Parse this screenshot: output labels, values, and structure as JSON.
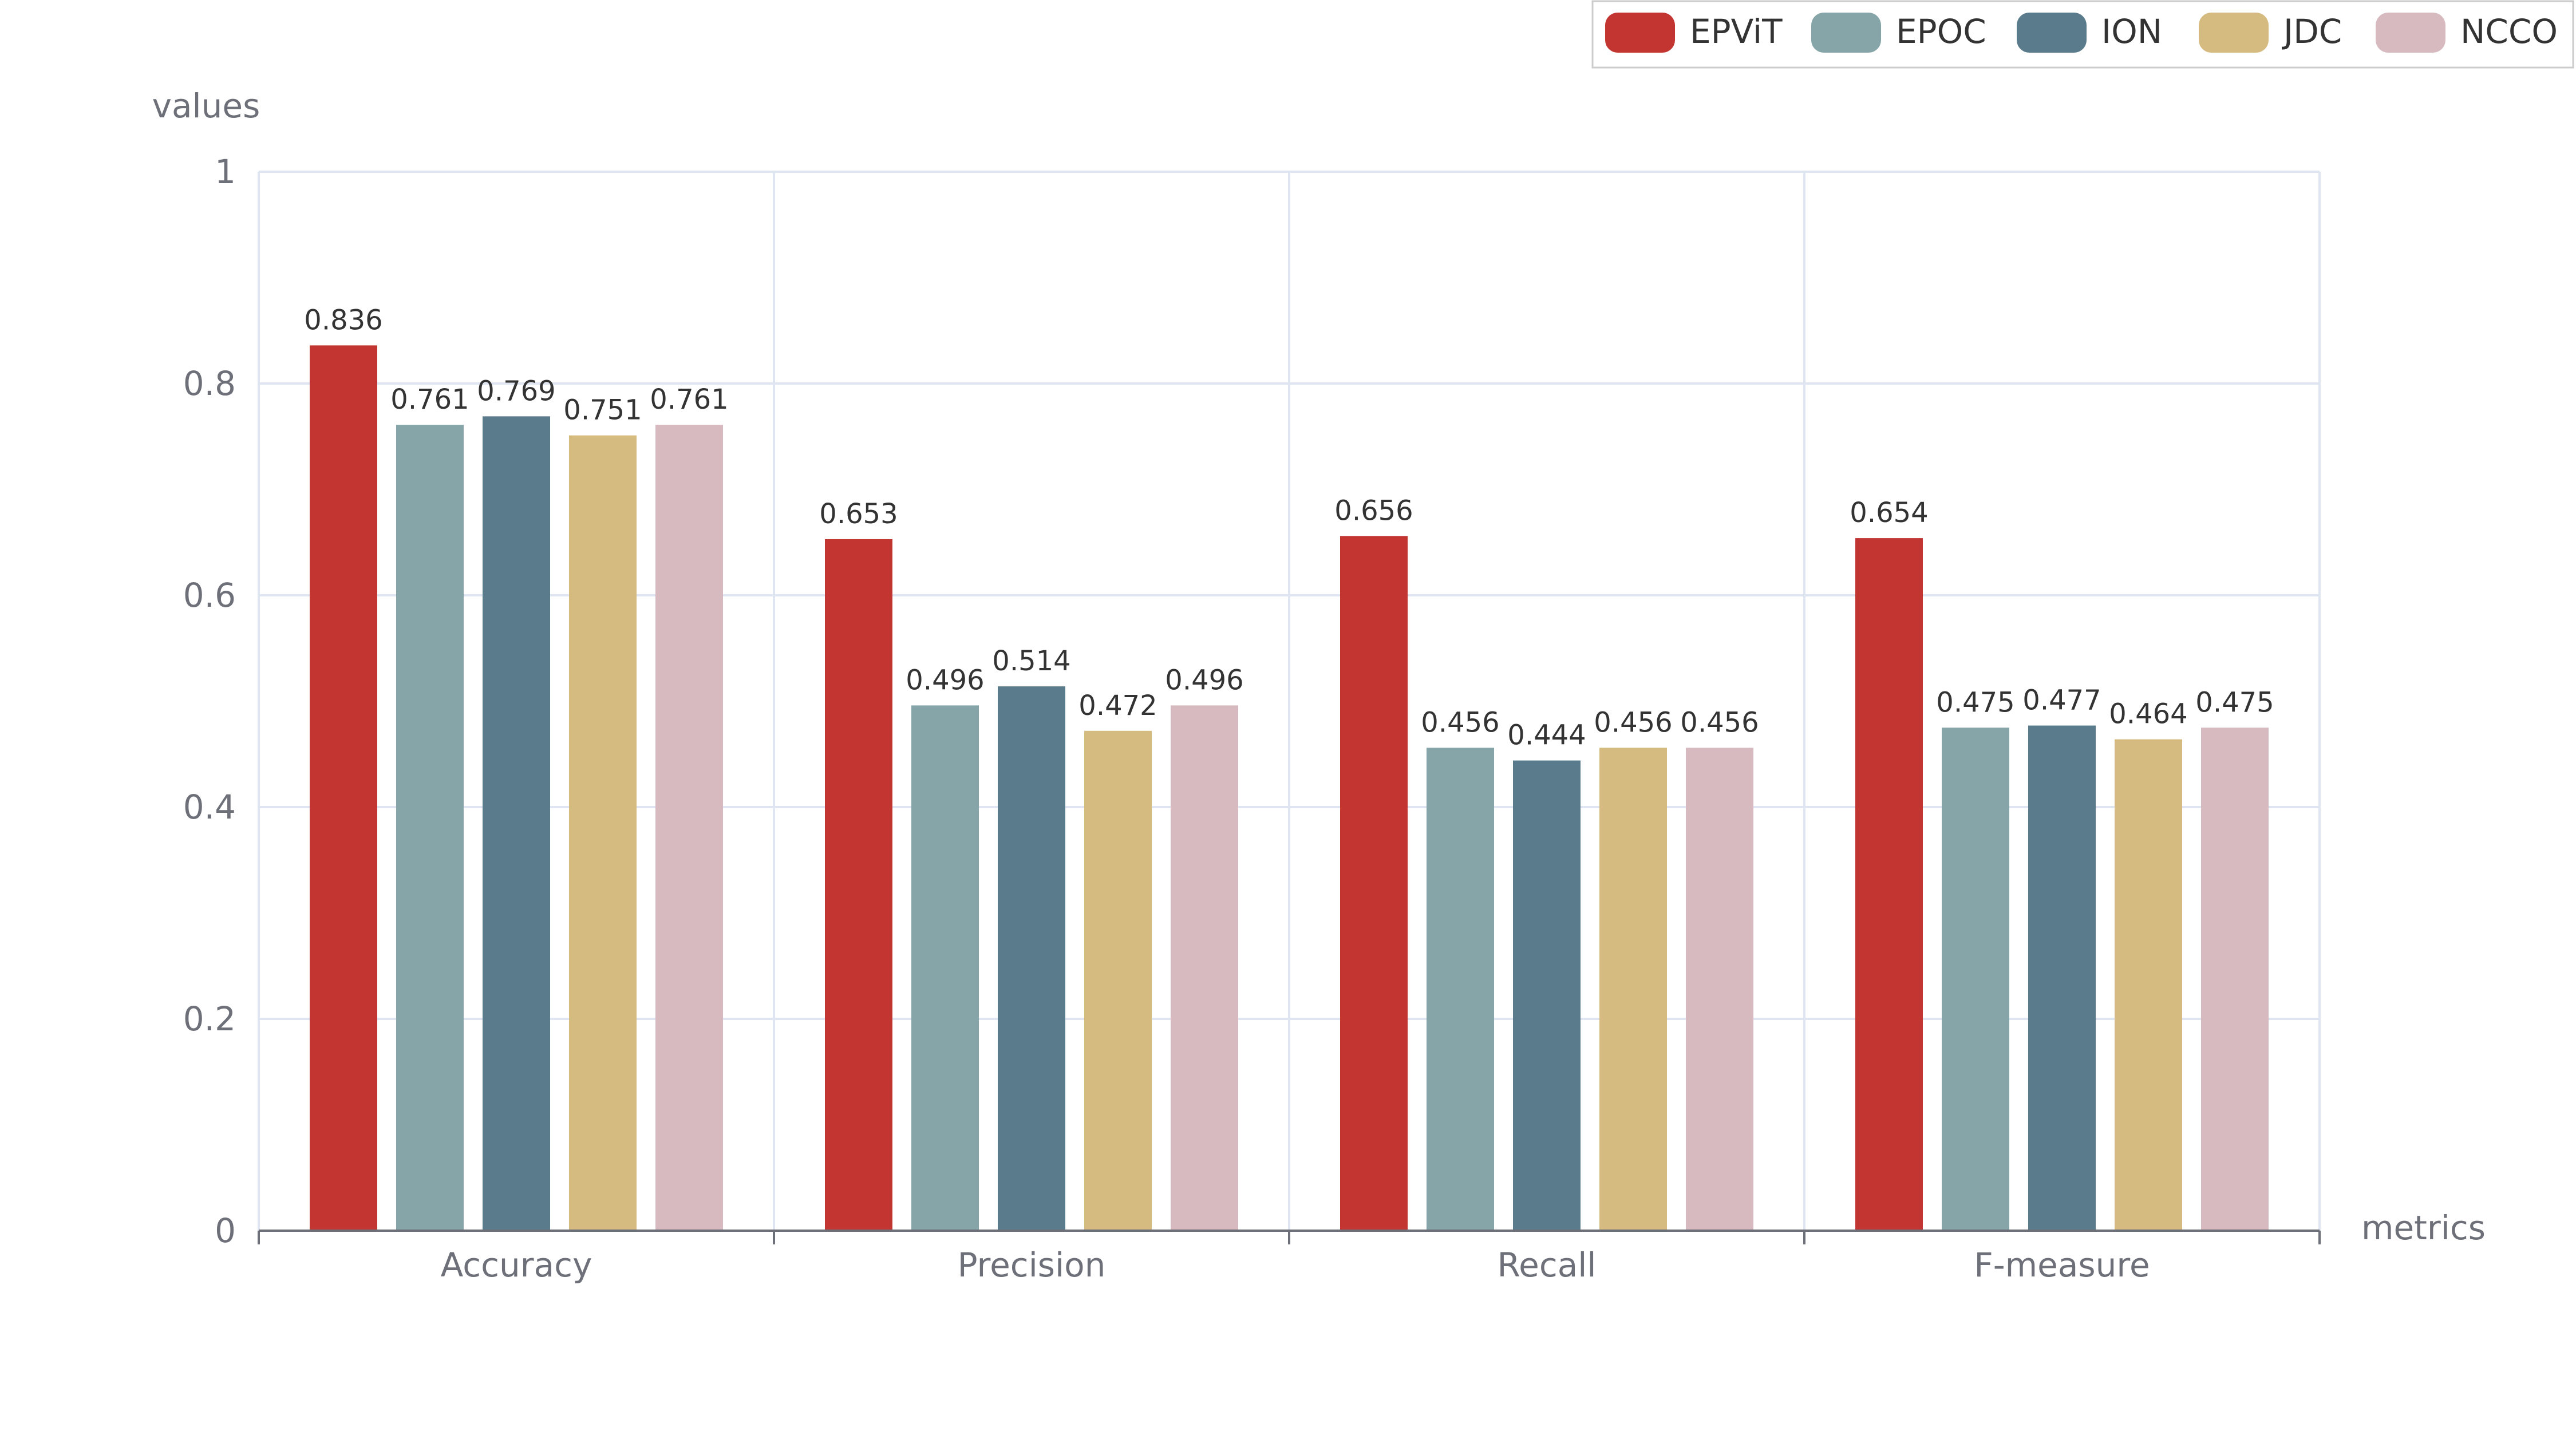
{
  "chart_data": {
    "type": "bar",
    "categories": [
      "Accuracy",
      "Precision",
      "Recall",
      "F-measure"
    ],
    "series": [
      {
        "name": "EPViT",
        "color": "#c23531",
        "values": [
          0.836,
          0.653,
          0.656,
          0.654
        ]
      },
      {
        "name": "EPOC",
        "color": "#86a5a8",
        "values": [
          0.761,
          0.496,
          0.456,
          0.475
        ]
      },
      {
        "name": "ION",
        "color": "#5a7b8b",
        "values": [
          0.769,
          0.514,
          0.444,
          0.477
        ]
      },
      {
        "name": "JDC",
        "color": "#d5bb80",
        "values": [
          0.751,
          0.472,
          0.456,
          0.464
        ]
      },
      {
        "name": "NCCO",
        "color": "#d7babf",
        "values": [
          0.761,
          0.496,
          0.456,
          0.475
        ]
      }
    ],
    "xlabel": "metrics",
    "ylabel": "values",
    "ylim": [
      0,
      1
    ],
    "yticks": [
      "0",
      "0.2",
      "0.4",
      "0.6",
      "0.8",
      "1"
    ],
    "grid": true,
    "legend_position": "top-right"
  }
}
